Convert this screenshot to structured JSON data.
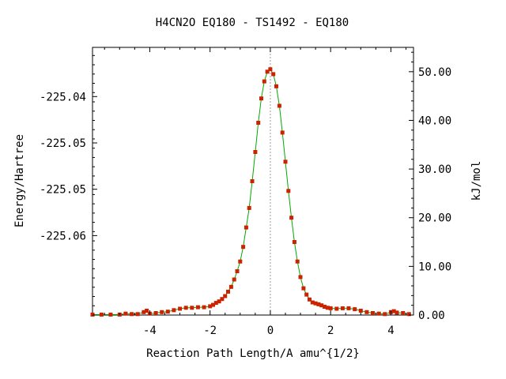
{
  "chart_data": {
    "type": "line",
    "title": "H4CN2O   EQ180 - TS1492 - EQ180",
    "xlabel": "Reaction Path Length/A amu^{1/2}",
    "ylabel_left": "Energy/Hartree",
    "ylabel_right": "kJ/mol",
    "xlim": [
      -5.9,
      4.75
    ],
    "ylim_hartree": [
      -225.0638,
      -225.0355
    ],
    "ylim_kjmol": [
      0.0,
      55.0
    ],
    "x_ticks": [
      -4,
      -2,
      0,
      2,
      4
    ],
    "x_tick_labels": [
      "-4",
      "-2",
      "0",
      "2",
      "4"
    ],
    "y_left_ticks": [
      -225.0407,
      -225.0456,
      -225.0505,
      -225.0554
    ],
    "y_left_tick_labels": [
      "-225.04",
      "-225.05",
      "-225.05",
      "-225.06"
    ],
    "y_right_ticks": [
      0,
      10,
      20,
      30,
      40,
      50
    ],
    "y_right_tick_labels": [
      "0.00",
      "10.00",
      "20.00",
      "30.00",
      "40.00",
      "50.00"
    ],
    "ts_marker_x": 0.0,
    "grid": false,
    "colors": {
      "line": "#00aa00",
      "points": "#cc2200",
      "ts_marker": "#999999",
      "axis": "#000000"
    },
    "series": [
      {
        "unit": "kJ/mol",
        "x": [
          -5.9,
          -5.6,
          -5.3,
          -5.0,
          -4.8,
          -4.6,
          -4.4,
          -4.2,
          -4.1,
          -4.0,
          -3.8,
          -3.6,
          -3.4,
          -3.2,
          -3.0,
          -2.8,
          -2.6,
          -2.4,
          -2.2,
          -2.0,
          -1.9,
          -1.8,
          -1.7,
          -1.6,
          -1.5,
          -1.4,
          -1.3,
          -1.2,
          -1.1,
          -1.0,
          -0.9,
          -0.8,
          -0.7,
          -0.6,
          -0.5,
          -0.4,
          -0.3,
          -0.2,
          -0.1,
          0.0,
          0.1,
          0.2,
          0.3,
          0.4,
          0.5,
          0.6,
          0.7,
          0.8,
          0.9,
          1.0,
          1.1,
          1.2,
          1.3,
          1.4,
          1.5,
          1.6,
          1.7,
          1.8,
          1.9,
          2.0,
          2.2,
          2.4,
          2.6,
          2.8,
          3.0,
          3.2,
          3.4,
          3.6,
          3.8,
          4.0,
          4.1,
          4.2,
          4.4,
          4.6
        ],
        "y": [
          0.1,
          0.1,
          0.1,
          0.1,
          0.3,
          0.2,
          0.2,
          0.6,
          0.9,
          0.3,
          0.4,
          0.6,
          0.7,
          1.0,
          1.3,
          1.5,
          1.5,
          1.6,
          1.6,
          1.8,
          2.1,
          2.5,
          2.8,
          3.3,
          3.9,
          4.8,
          5.8,
          7.3,
          9.0,
          11.0,
          14.0,
          18.0,
          22.0,
          27.5,
          33.5,
          39.5,
          44.5,
          48.0,
          50.0,
          50.5,
          49.5,
          47.0,
          43.0,
          37.5,
          31.5,
          25.5,
          20.0,
          15.0,
          11.0,
          7.8,
          5.5,
          4.2,
          3.2,
          2.6,
          2.4,
          2.2,
          2.0,
          1.7,
          1.5,
          1.4,
          1.3,
          1.4,
          1.4,
          1.2,
          0.9,
          0.6,
          0.4,
          0.3,
          0.2,
          0.6,
          0.8,
          0.5,
          0.4,
          0.2
        ]
      }
    ]
  }
}
